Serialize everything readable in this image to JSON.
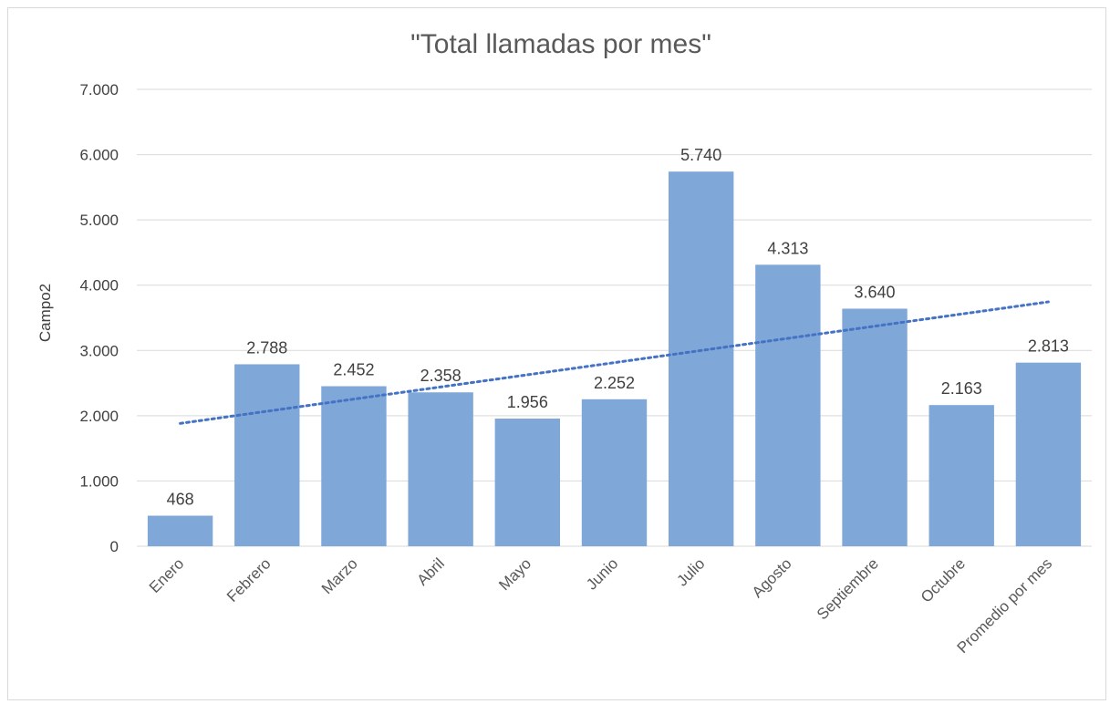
{
  "chart_data": {
    "type": "bar",
    "title": "\"Total llamadas por mes\"",
    "xlabel": "",
    "ylabel": "Campo2",
    "categories": [
      "Enero",
      "Febrero",
      "Marzo",
      "Abril",
      "Mayo",
      "Junio",
      "Julio",
      "Agosto",
      "Septiembre",
      "Octubre",
      "Promedio por mes"
    ],
    "values": [
      468,
      2788,
      2452,
      2358,
      1956,
      2252,
      5740,
      4313,
      3640,
      2163,
      2813
    ],
    "data_labels": [
      "468",
      "2.788",
      "2.452",
      "2.358",
      "1.956",
      "2.252",
      "5.740",
      "4.313",
      "3.640",
      "2.163",
      "2.813"
    ],
    "ylim": [
      0,
      7000
    ],
    "yticks": [
      0,
      1000,
      2000,
      3000,
      4000,
      5000,
      6000,
      7000
    ],
    "ytick_labels": [
      "0",
      "1.000",
      "2.000",
      "3.000",
      "4.000",
      "5.000",
      "6.000",
      "7.000"
    ],
    "grid": true,
    "legend": "none",
    "trendline": {
      "type": "linear",
      "style": "dotted",
      "color": "#4472c4"
    },
    "bar_color": "#7fa7d7",
    "grid_color": "#d9d9d9"
  }
}
